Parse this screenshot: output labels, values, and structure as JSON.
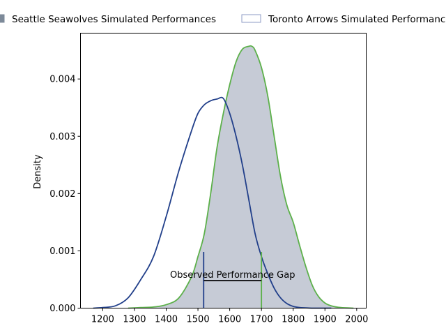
{
  "chart_data": {
    "type": "area",
    "title": "",
    "xlabel": "",
    "ylabel": "Density",
    "xlim": [
      1130,
      2030
    ],
    "ylim": [
      0,
      0.0048
    ],
    "x_ticks": [
      1200,
      1300,
      1400,
      1500,
      1600,
      1700,
      1800,
      1900,
      2000
    ],
    "y_ticks": [
      0.0,
      0.001,
      0.002,
      0.003,
      0.004
    ],
    "y_tick_labels": [
      "0.000",
      "0.001",
      "0.002",
      "0.003",
      "0.004"
    ],
    "grid": false,
    "legend_placement": "top, above plot",
    "series": [
      {
        "name": "Seattle Seawolves Simulated Performances",
        "style": "filled",
        "fill_color": "#c6cbd6",
        "line_color": "#5cb04a",
        "x": [
          1280,
          1320,
          1360,
          1400,
          1440,
          1480,
          1500,
          1520,
          1540,
          1560,
          1580,
          1600,
          1620,
          1640,
          1660,
          1670,
          1680,
          1700,
          1720,
          1740,
          1760,
          1780,
          1800,
          1820,
          1840,
          1860,
          1880,
          1900,
          1920,
          1950,
          1990
        ],
        "values": [
          0.0,
          1e-05,
          2e-05,
          6e-05,
          0.00018,
          0.00055,
          0.0009,
          0.0013,
          0.002,
          0.0028,
          0.0034,
          0.0039,
          0.0043,
          0.00452,
          0.00457,
          0.00457,
          0.0045,
          0.0042,
          0.0037,
          0.003,
          0.0023,
          0.0018,
          0.0015,
          0.0011,
          0.00072,
          0.0004,
          0.0002,
          9e-05,
          4e-05,
          1e-05,
          0.0
        ]
      },
      {
        "name": "Toronto Arrows Simulated Performances",
        "style": "line",
        "line_color": "#213f8a",
        "x": [
          1170,
          1200,
          1240,
          1280,
          1320,
          1360,
          1400,
          1440,
          1480,
          1500,
          1520,
          1540,
          1560,
          1580,
          1600,
          1620,
          1640,
          1660,
          1680,
          1700,
          1720,
          1740,
          1760,
          1780,
          1800,
          1820,
          1840,
          1860,
          1880,
          1900,
          1920
        ],
        "values": [
          0.0,
          1e-05,
          4e-05,
          0.00018,
          0.0005,
          0.0009,
          0.0016,
          0.0024,
          0.0031,
          0.0034,
          0.00355,
          0.00362,
          0.00365,
          0.00366,
          0.0034,
          0.003,
          0.0025,
          0.0019,
          0.0013,
          0.0009,
          0.0006,
          0.00035,
          0.00018,
          8e-05,
          3e-05,
          1e-05,
          5e-06,
          0.0,
          0.0,
          0.0,
          0.0
        ]
      }
    ],
    "markers": [
      {
        "x": 1518,
        "y0": 0,
        "y1": 0.00098,
        "color": "#213f8a"
      },
      {
        "x": 1700,
        "y0": 0,
        "y1": 0.00098,
        "color": "#5cb04a"
      }
    ],
    "gap_bar": {
      "x0": 1518,
      "x1": 1700,
      "y": 0.00048,
      "color": "#000000"
    },
    "annotations": [
      {
        "text": "Observed Performance Gap",
        "x": 1609,
        "y": 0.00053
      }
    ],
    "colors": {
      "seattle_fill": "#c6cbd6",
      "seattle_line": "#5cb04a",
      "toronto_line": "#213f8a"
    }
  }
}
